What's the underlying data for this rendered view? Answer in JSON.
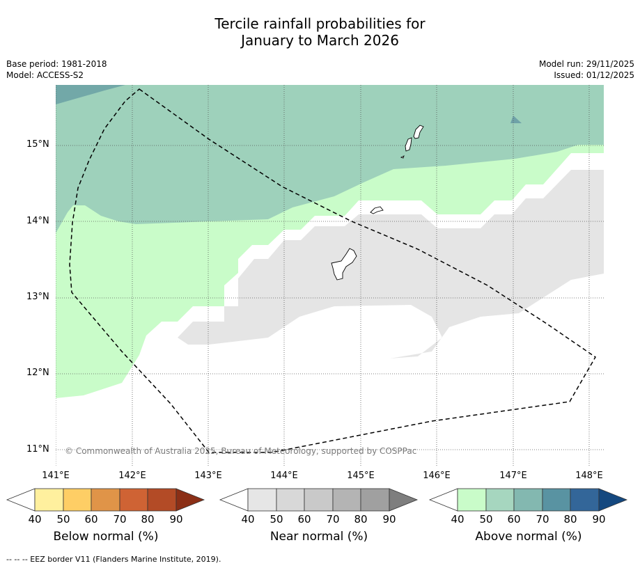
{
  "header": {
    "title_line1": "Tercile rainfall probabilities for",
    "title_line2": "January to March 2026",
    "base_period": "Base period: 1981-2018",
    "model": "Model: ACCESS-S2",
    "model_run": "Model run: 29/11/2025",
    "issued": "Issued: 01/12/2025"
  },
  "map": {
    "lat_labels": [
      "15°N",
      "14°N",
      "13°N",
      "12°N",
      "11°N"
    ],
    "lon_labels": [
      "141°E",
      "142°E",
      "143°E",
      "144°E",
      "145°E",
      "146°E",
      "147°E",
      "148°E"
    ],
    "copyright": "© Commonwealth of Australia 2025, Bureau of Meteorology, supported by COSPPac",
    "lon_range": [
      140.8,
      148.2
    ],
    "lat_range": [
      10.8,
      15.8
    ]
  },
  "colorbars": {
    "ticks": [
      "40",
      "50",
      "60",
      "70",
      "80",
      "90"
    ],
    "below": {
      "title": "Below normal (%)",
      "colors": [
        "#fff09e",
        "#fece65",
        "#e09448",
        "#cf6334",
        "#b34b26",
        "#8b2f16"
      ]
    },
    "near": {
      "title": "Near normal (%)",
      "colors": [
        "#e6e6e6",
        "#d8d8d8",
        "#c9c9c9",
        "#b4b4b4",
        "#a0a0a0",
        "#7e7e7e"
      ]
    },
    "above": {
      "title": "Above normal (%)",
      "colors": [
        "#c9fcc9",
        "#a6d6bf",
        "#83b8b0",
        "#5993a2",
        "#336699",
        "#14487f"
      ]
    }
  },
  "footnote": "--  --  -- EEZ border V11 (Flanders Marine Institute, 2019)."
}
